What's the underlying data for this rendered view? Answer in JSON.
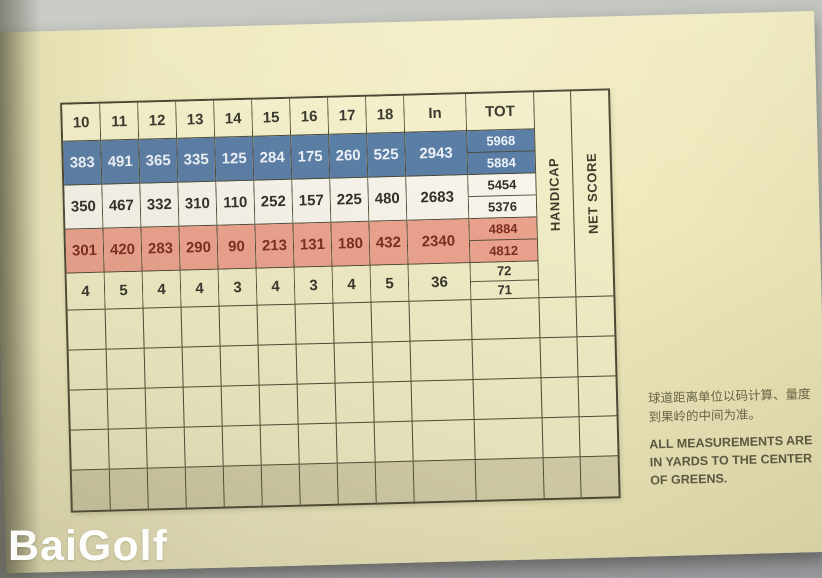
{
  "watermark": "BaiGolf",
  "table": {
    "hole_headers": [
      "10",
      "11",
      "12",
      "13",
      "14",
      "15",
      "16",
      "17",
      "18"
    ],
    "in_header": "In",
    "tot_header": "TOT",
    "side_labels": {
      "handicap": "HANDICAP",
      "net_score": "NET SCORE"
    },
    "rows": {
      "blue": {
        "holes": [
          "383",
          "491",
          "365",
          "335",
          "125",
          "284",
          "175",
          "260",
          "525"
        ],
        "in": "2943",
        "tot": [
          "5968",
          "5884"
        ]
      },
      "white": {
        "holes": [
          "350",
          "467",
          "332",
          "310",
          "110",
          "252",
          "157",
          "225",
          "480"
        ],
        "in": "2683",
        "tot": [
          "5454",
          "5376"
        ]
      },
      "pink": {
        "holes": [
          "301",
          "420",
          "283",
          "290",
          "90",
          "213",
          "131",
          "180",
          "432"
        ],
        "in": "2340",
        "tot": [
          "4884",
          "4812"
        ]
      },
      "par": {
        "holes": [
          "4",
          "5",
          "4",
          "4",
          "3",
          "4",
          "3",
          "4",
          "5"
        ],
        "in": "36",
        "tot": [
          "72",
          "71"
        ]
      }
    },
    "empty_score_rows": 5
  },
  "notes": {
    "chinese": "球道距离单位以码计算、量度到果岭的中间为准。",
    "english": "ALL MEASUREMENTS ARE IN YARDS TO THE CENTER OF GREENS."
  },
  "colors": {
    "card": "#f1edc6",
    "blue_tee_row": "#5b7ea6",
    "white_tee_row": "#f7f5ec",
    "red_tee_row": "#eca28e",
    "red_tee_text": "#7c2c1c",
    "grid_line": "#4a4733",
    "background": "#bfc1bb"
  }
}
